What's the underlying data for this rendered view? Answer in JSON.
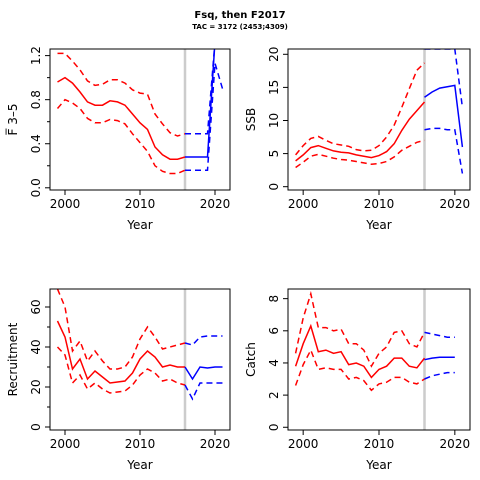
{
  "title": "Fsq, then F2017",
  "subtitle": "TAC = 3172 (2453;4309)",
  "colors": {
    "historic": "#ff0000",
    "projection": "#0000ff",
    "vline": "#cccccc"
  },
  "vline_year": 2016,
  "chart_data": [
    {
      "type": "line",
      "id": "fbar",
      "xlabel": "Year",
      "ylabel": "F̅ 3–5",
      "xlim": [
        1998,
        2022
      ],
      "ylim": [
        -0.02,
        1.26
      ],
      "xticks": [
        2000,
        2010,
        2020
      ],
      "yticks": [
        0.0,
        0.4,
        0.8,
        1.2
      ],
      "ytick_labels": [
        "0.0",
        "0.4",
        "0.8",
        "1.2"
      ],
      "minor_yticks": [
        0.2,
        0.6,
        1.0
      ],
      "series": [
        {
          "role": "historic",
          "style": "solid",
          "x": [
            1999,
            2000,
            2001,
            2002,
            2003,
            2004,
            2005,
            2006,
            2007,
            2008,
            2009,
            2010,
            2011,
            2012,
            2013,
            2014,
            2015,
            2016
          ],
          "y": [
            0.96,
            1.0,
            0.95,
            0.87,
            0.78,
            0.75,
            0.75,
            0.79,
            0.78,
            0.75,
            0.67,
            0.59,
            0.53,
            0.37,
            0.3,
            0.26,
            0.26,
            0.28
          ]
        },
        {
          "role": "historic",
          "style": "dashed",
          "x": [
            1999,
            2000,
            2001,
            2002,
            2003,
            2004,
            2005,
            2006,
            2007,
            2008,
            2009,
            2010,
            2011,
            2012,
            2013,
            2014,
            2015,
            2016
          ],
          "y": [
            1.22,
            1.22,
            1.15,
            1.07,
            0.97,
            0.93,
            0.94,
            0.98,
            0.98,
            0.95,
            0.89,
            0.86,
            0.85,
            0.67,
            0.58,
            0.5,
            0.47,
            0.49
          ]
        },
        {
          "role": "historic",
          "style": "dashed",
          "x": [
            1999,
            2000,
            2001,
            2002,
            2003,
            2004,
            2005,
            2006,
            2007,
            2008,
            2009,
            2010,
            2011,
            2012,
            2013,
            2014,
            2015,
            2016
          ],
          "y": [
            0.72,
            0.8,
            0.77,
            0.72,
            0.63,
            0.59,
            0.59,
            0.62,
            0.61,
            0.58,
            0.49,
            0.41,
            0.33,
            0.2,
            0.15,
            0.13,
            0.13,
            0.16
          ]
        },
        {
          "role": "projection",
          "style": "solid",
          "x": [
            2016,
            2017,
            2018,
            2019,
            2020,
            2021
          ],
          "y": [
            0.28,
            0.28,
            0.28,
            0.28,
            1.33,
            1.33
          ]
        },
        {
          "role": "projection",
          "style": "dashed",
          "x": [
            2016,
            2017,
            2018,
            2019,
            2020,
            2021
          ],
          "y": [
            0.49,
            0.49,
            0.49,
            0.49,
            1.33,
            1.33
          ]
        },
        {
          "role": "projection",
          "style": "dashed",
          "x": [
            2016,
            2017,
            2018,
            2019,
            2020,
            2021
          ],
          "y": [
            0.16,
            0.16,
            0.16,
            0.16,
            1.13,
            0.9
          ]
        }
      ]
    },
    {
      "type": "line",
      "id": "ssb",
      "xlabel": "Year",
      "ylabel": "SSB",
      "xlim": [
        1998,
        2022
      ],
      "ylim": [
        -0.5,
        20.8
      ],
      "xticks": [
        2000,
        2010,
        2020
      ],
      "yticks": [
        0,
        5,
        10,
        15,
        20
      ],
      "ytick_labels": [
        "0",
        "5",
        "10",
        "15",
        "20"
      ],
      "minor_yticks": [],
      "series": [
        {
          "role": "historic",
          "style": "solid",
          "x": [
            1999,
            2000,
            2001,
            2002,
            2003,
            2004,
            2005,
            2006,
            2007,
            2008,
            2009,
            2010,
            2011,
            2012,
            2013,
            2014,
            2015,
            2016
          ],
          "y": [
            3.9,
            4.8,
            5.9,
            6.2,
            5.8,
            5.4,
            5.2,
            5.1,
            4.8,
            4.6,
            4.4,
            4.7,
            5.3,
            6.5,
            8.5,
            10.2,
            11.5,
            12.8
          ]
        },
        {
          "role": "historic",
          "style": "dashed",
          "x": [
            1999,
            2000,
            2001,
            2002,
            2003,
            2004,
            2005,
            2006,
            2007,
            2008,
            2009,
            2010,
            2011,
            2012,
            2013,
            2014,
            2015,
            2016
          ],
          "y": [
            4.8,
            6.2,
            7.3,
            7.6,
            7.0,
            6.5,
            6.3,
            6.1,
            5.6,
            5.4,
            5.5,
            6.2,
            7.5,
            9.3,
            12.0,
            14.8,
            17.6,
            18.7
          ]
        },
        {
          "role": "historic",
          "style": "dashed",
          "x": [
            1999,
            2000,
            2001,
            2002,
            2003,
            2004,
            2005,
            2006,
            2007,
            2008,
            2009,
            2010,
            2011,
            2012,
            2013,
            2014,
            2015,
            2016
          ],
          "y": [
            2.9,
            3.7,
            4.6,
            4.9,
            4.6,
            4.3,
            4.1,
            4.0,
            3.8,
            3.6,
            3.4,
            3.5,
            3.8,
            4.5,
            5.5,
            6.1,
            6.7,
            7.0
          ]
        },
        {
          "role": "projection",
          "style": "solid",
          "x": [
            2016,
            2017,
            2018,
            2019,
            2020,
            2021
          ],
          "y": [
            13.5,
            14.3,
            14.9,
            15.1,
            15.3,
            6.0
          ]
        },
        {
          "role": "projection",
          "style": "dashed",
          "x": [
            2016,
            2017,
            2018,
            2019,
            2020,
            2021
          ],
          "y": [
            20.8,
            20.8,
            20.8,
            20.8,
            20.8,
            12.0
          ]
        },
        {
          "role": "projection",
          "style": "dashed",
          "x": [
            2016,
            2017,
            2018,
            2019,
            2020,
            2021
          ],
          "y": [
            8.6,
            8.8,
            8.8,
            8.6,
            8.6,
            2.0
          ]
        }
      ]
    },
    {
      "type": "line",
      "id": "recruitment",
      "xlabel": "Year",
      "ylabel": "Recruitment",
      "xlim": [
        1998,
        2022
      ],
      "ylim": [
        -1.5,
        69
      ],
      "xticks": [
        2000,
        2010,
        2020
      ],
      "yticks": [
        0,
        20,
        40,
        60
      ],
      "ytick_labels": [
        "0",
        "20",
        "40",
        "60"
      ],
      "minor_yticks": [
        10,
        30,
        50
      ],
      "series": [
        {
          "role": "historic",
          "style": "solid",
          "x": [
            1999,
            2000,
            2001,
            2002,
            2003,
            2004,
            2005,
            2006,
            2007,
            2008,
            2009,
            2010,
            2011,
            2012,
            2013,
            2014,
            2015,
            2016
          ],
          "y": [
            53,
            45,
            29,
            34,
            24,
            28,
            25,
            22,
            22.5,
            23,
            27,
            34,
            38,
            35,
            30,
            31,
            30,
            30
          ]
        },
        {
          "role": "historic",
          "style": "dashed",
          "x": [
            1999,
            2000,
            2001,
            2002,
            2003,
            2004,
            2005,
            2006,
            2007,
            2008,
            2009,
            2010,
            2011,
            2012,
            2013,
            2014,
            2015,
            2016
          ],
          "y": [
            69,
            60,
            38,
            43,
            33,
            38,
            33,
            29,
            29,
            30,
            35,
            44,
            50,
            45,
            39,
            40,
            41,
            42
          ]
        },
        {
          "role": "historic",
          "style": "dashed",
          "x": [
            1999,
            2000,
            2001,
            2002,
            2003,
            2004,
            2005,
            2006,
            2007,
            2008,
            2009,
            2010,
            2011,
            2012,
            2013,
            2014,
            2015,
            2016
          ],
          "y": [
            40,
            36,
            22,
            26,
            19,
            22,
            19,
            17,
            17.5,
            18,
            21,
            26,
            29,
            27,
            23,
            24,
            22,
            21
          ]
        },
        {
          "role": "projection",
          "style": "solid",
          "x": [
            2016,
            2017,
            2018,
            2019,
            2020,
            2021
          ],
          "y": [
            30,
            24,
            30,
            29.5,
            30,
            30
          ]
        },
        {
          "role": "projection",
          "style": "dashed",
          "x": [
            2016,
            2017,
            2018,
            2019,
            2020,
            2021
          ],
          "y": [
            42,
            41,
            45,
            45.5,
            45.5,
            45.5
          ]
        },
        {
          "role": "projection",
          "style": "dashed",
          "x": [
            2016,
            2017,
            2018,
            2019,
            2020,
            2021
          ],
          "y": [
            21,
            14,
            22,
            22,
            22,
            22
          ]
        }
      ]
    },
    {
      "type": "line",
      "id": "catch",
      "xlabel": "Year",
      "ylabel": "Catch",
      "xlim": [
        1998,
        2022
      ],
      "ylim": [
        -0.17,
        8.6
      ],
      "xticks": [
        2000,
        2010,
        2020
      ],
      "yticks": [
        0,
        2,
        4,
        6,
        8
      ],
      "ytick_labels": [
        "0",
        "2",
        "4",
        "6",
        "8"
      ],
      "minor_yticks": [],
      "series": [
        {
          "role": "historic",
          "style": "solid",
          "x": [
            1999,
            2000,
            2001,
            2002,
            2003,
            2004,
            2005,
            2006,
            2007,
            2008,
            2009,
            2010,
            2011,
            2012,
            2013,
            2014,
            2015,
            2016
          ],
          "y": [
            3.8,
            5.2,
            6.3,
            4.7,
            4.8,
            4.6,
            4.7,
            3.9,
            4.0,
            3.8,
            3.1,
            3.6,
            3.8,
            4.3,
            4.3,
            3.8,
            3.7,
            4.3
          ]
        },
        {
          "role": "historic",
          "style": "dashed",
          "x": [
            1999,
            2000,
            2001,
            2002,
            2003,
            2004,
            2005,
            2006,
            2007,
            2008,
            2009,
            2010,
            2011,
            2012,
            2013,
            2014,
            2015,
            2016
          ],
          "y": [
            4.6,
            6.8,
            8.3,
            6.2,
            6.2,
            6.0,
            6.1,
            5.2,
            5.2,
            4.8,
            3.8,
            4.6,
            5.0,
            5.9,
            6.0,
            5.2,
            5.0,
            5.9
          ]
        },
        {
          "role": "historic",
          "style": "dashed",
          "x": [
            1999,
            2000,
            2001,
            2002,
            2003,
            2004,
            2005,
            2006,
            2007,
            2008,
            2009,
            2010,
            2011,
            2012,
            2013,
            2014,
            2015,
            2016
          ],
          "y": [
            2.6,
            3.9,
            4.8,
            3.6,
            3.7,
            3.6,
            3.6,
            3.0,
            3.1,
            2.9,
            2.3,
            2.7,
            2.8,
            3.1,
            3.1,
            2.8,
            2.7,
            3.0
          ]
        },
        {
          "role": "projection",
          "style": "solid",
          "x": [
            2016,
            2017,
            2018,
            2019,
            2020
          ],
          "y": [
            4.2,
            4.3,
            4.35,
            4.35,
            4.35
          ]
        },
        {
          "role": "projection",
          "style": "dashed",
          "x": [
            2016,
            2017,
            2018,
            2019,
            2020
          ],
          "y": [
            5.9,
            5.8,
            5.7,
            5.6,
            5.6
          ]
        },
        {
          "role": "projection",
          "style": "dashed",
          "x": [
            2016,
            2017,
            2018,
            2019,
            2020
          ],
          "y": [
            3.0,
            3.2,
            3.3,
            3.4,
            3.4
          ]
        }
      ]
    }
  ]
}
